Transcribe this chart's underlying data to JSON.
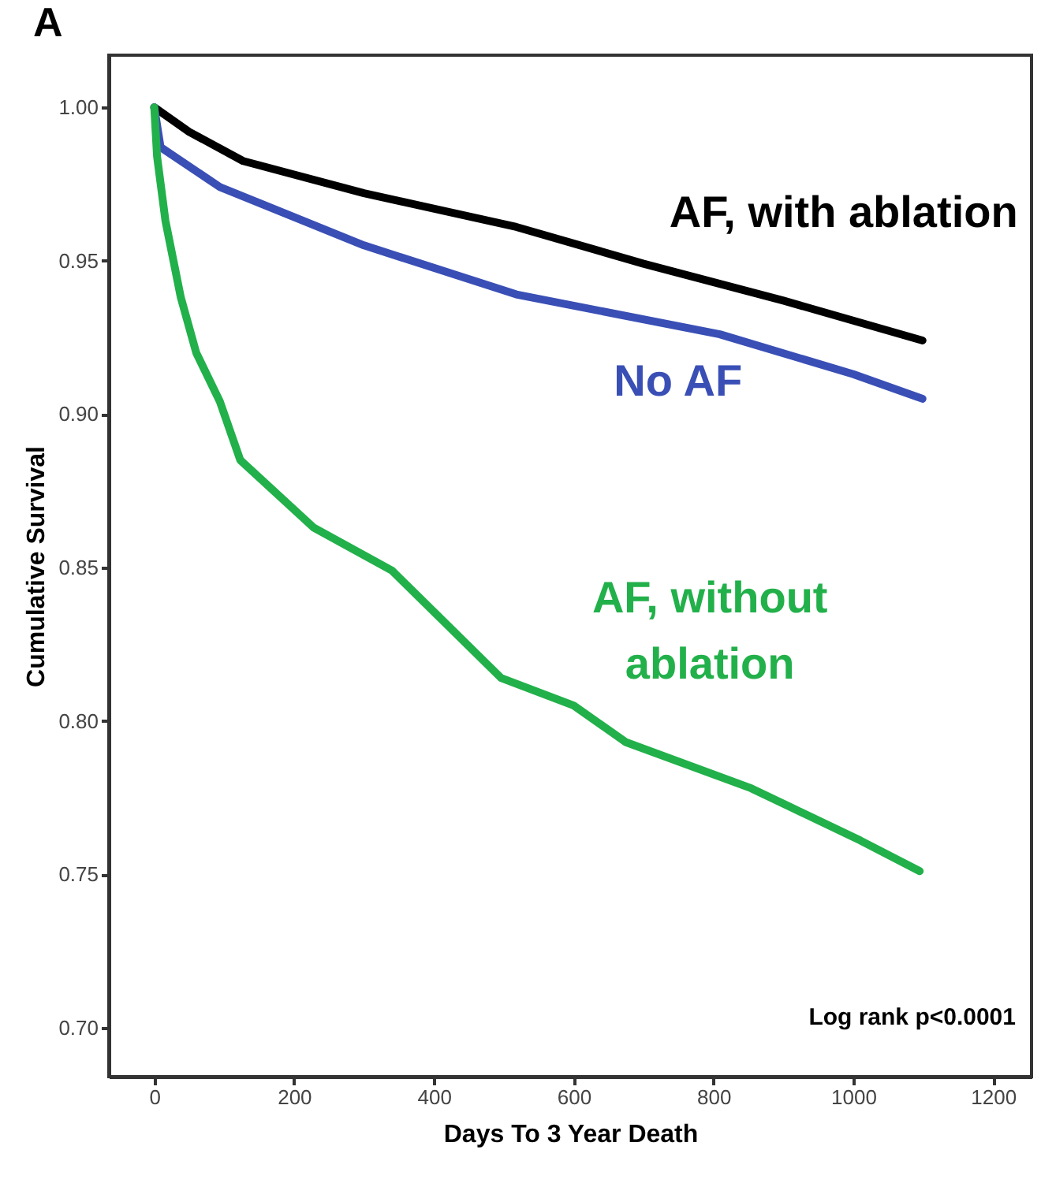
{
  "chart_data": {
    "type": "line",
    "xlabel": "Days To 3 Year Death",
    "ylabel": "Cumulative Survival",
    "xlim": [
      -65,
      1255
    ],
    "ylim": [
      0.684,
      1.017
    ],
    "xticks": [
      0,
      200,
      400,
      600,
      800,
      1000,
      1200
    ],
    "yticks": [
      {
        "value": 0.7,
        "label": "0.70"
      },
      0.75,
      {
        "value": 0.8,
        "label": "0.80"
      },
      0.85,
      {
        "value": 0.9,
        "label": "0.90"
      },
      0.95,
      {
        "value": 1.0,
        "label": "1.00"
      }
    ],
    "grid": false,
    "marker": "none",
    "line_style": "solid",
    "annotations": [
      "A",
      "Log rank p<0.0001"
    ],
    "series": [
      {
        "name": "AF, with ablation",
        "color": "#000000",
        "x": [
          0,
          50,
          127,
          300,
          518,
          700,
          900,
          1099
        ],
        "values": [
          1.0,
          0.992,
          0.9825,
          0.972,
          0.961,
          0.949,
          0.937,
          0.924
        ]
      },
      {
        "name": "No AF",
        "color": "#3a4fb5",
        "x": [
          0,
          9,
          94,
          300,
          518,
          809,
          1000,
          1099
        ],
        "values": [
          1.0,
          0.987,
          0.974,
          0.955,
          0.939,
          0.926,
          0.913,
          0.905
        ]
      },
      {
        "name": "AF, without ablation",
        "color": "#22b04a",
        "x": [
          0,
          4,
          16,
          38,
          60,
          94,
          123,
          228,
          340,
          496,
          600,
          675,
          854,
          1010,
          1095
        ],
        "values": [
          1.0,
          0.984,
          0.963,
          0.938,
          0.92,
          0.904,
          0.885,
          0.863,
          0.849,
          0.814,
          0.805,
          0.793,
          0.778,
          0.761,
          0.751
        ]
      }
    ]
  }
}
